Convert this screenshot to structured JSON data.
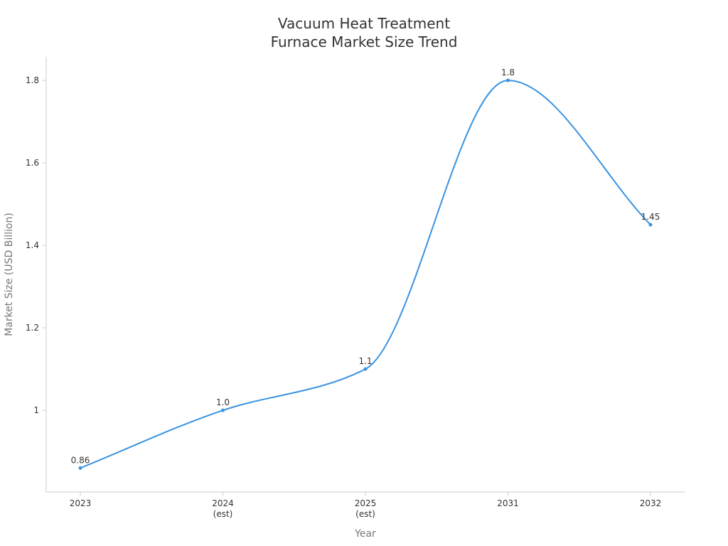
{
  "chart_data": {
    "type": "line",
    "title": [
      "Vacuum Heat Treatment",
      "Furnace Market Size Trend"
    ],
    "xlabel": "Year",
    "ylabel": "Market Size (USD Billion)",
    "categories": [
      {
        "label": "2023",
        "sub": ""
      },
      {
        "label": "2024",
        "sub": "(est)"
      },
      {
        "label": "2025",
        "sub": "(est)"
      },
      {
        "label": "2031",
        "sub": ""
      },
      {
        "label": "2032",
        "sub": ""
      }
    ],
    "series": [
      {
        "name": "Market Size",
        "values": [
          0.86,
          1.0,
          1.1,
          1.8,
          1.45
        ],
        "labels": [
          "0.86",
          "1.0",
          "1.1",
          "1.8",
          "1.45"
        ],
        "color": "#3a93e0"
      }
    ],
    "yticks": [
      {
        "value": 1.0,
        "label": "1"
      },
      {
        "value": 1.2,
        "label": "1.2"
      },
      {
        "value": 1.4,
        "label": "1.4"
      },
      {
        "value": 1.6,
        "label": "1.6"
      },
      {
        "value": 1.8,
        "label": "1.8"
      }
    ],
    "ylim": [
      0.802,
      1.857
    ],
    "grid": false,
    "axis_color": "#cccccc"
  }
}
